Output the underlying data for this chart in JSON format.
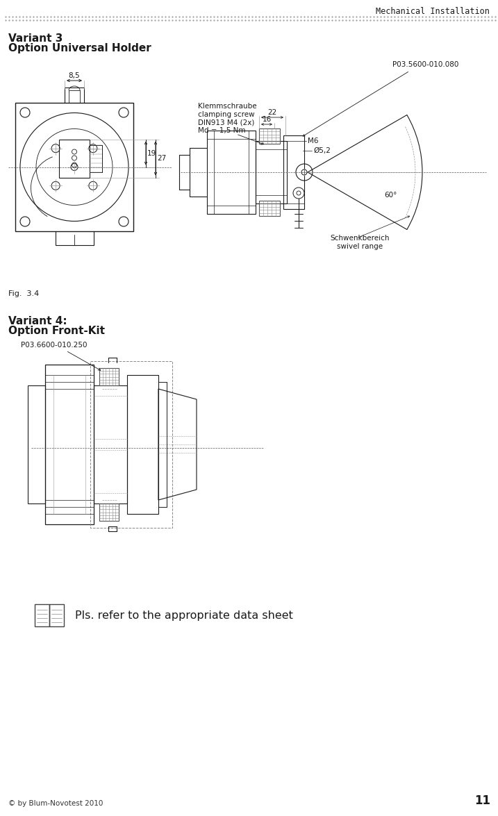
{
  "title_header": "Mechanical Installation",
  "variant3_title": "Variant 3",
  "variant3_subtitle": "Option Universal Holder",
  "variant4_title": "Variant 4:",
  "variant4_subtitle": "Option Front-Kit",
  "fig_label": "Fig.  3.4",
  "part_number_1": "P03.5600-010.080",
  "part_number_2": "P03.6600-010.250",
  "dim_8_5": "8,5",
  "dim_19": "19",
  "dim_27": "27",
  "dim_22": "22",
  "dim_16": "16",
  "label_M6": "M6",
  "label_dia": "Ø5,2",
  "label_clamping": "Klemmschraube\nclamping screw\nDIN913 M4 (2x)\nMd = 1,5 Nm",
  "label_swivel": "Schwenkbereich\nswivel range",
  "label_60": "60°",
  "note_text": "Pls. refer to the appropriate data sheet",
  "copyright": "© by Blum-Novotest 2010",
  "page_number": "11",
  "bg_color": "#ffffff",
  "line_color": "#1a1a1a",
  "gray_line": "#999999",
  "light_gray": "#cccccc",
  "header_font": "monospace",
  "body_font": "DejaVu Sans"
}
